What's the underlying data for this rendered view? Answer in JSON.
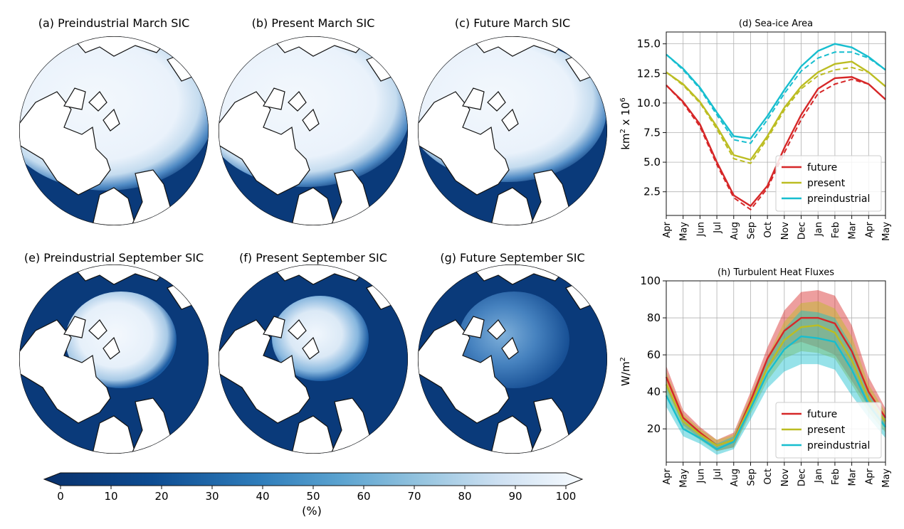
{
  "maps": [
    {
      "title": "(a) Preindustrial March SIC",
      "month": "March",
      "scenario": "preindustrial"
    },
    {
      "title": "(b) Present March SIC",
      "month": "March",
      "scenario": "present"
    },
    {
      "title": "(c) Future March SIC",
      "month": "March",
      "scenario": "future"
    },
    {
      "title": "(e) Preindustrial September SIC",
      "month": "September",
      "scenario": "preindustrial"
    },
    {
      "title": "(f) Present September SIC",
      "month": "September",
      "scenario": "present"
    },
    {
      "title": "(g) Future September SIC",
      "month": "September",
      "scenario": "future"
    }
  ],
  "colorbar": {
    "ticks": [
      "0",
      "10",
      "20",
      "30",
      "40",
      "50",
      "60",
      "70",
      "80",
      "90",
      "100"
    ],
    "label": "(%)",
    "low_color": "#08306b",
    "high_color": "#f7fbff"
  },
  "colors": {
    "future": "#d62728",
    "present": "#bcbd22",
    "preindustrial": "#17becf",
    "ocean": "#0a3a7a",
    "ice": "#eef5fc"
  },
  "chart_data": [
    {
      "type": "line",
      "title": "(d) Sea-ice Area",
      "ylabel": "km² x 10⁶",
      "ylabel_base": "km",
      "ylabel_sup1": "2",
      "ylabel_mid": " x 10",
      "ylabel_sup2": "6",
      "x": [
        "Apr",
        "May",
        "Jun",
        "Jul",
        "Aug",
        "Sep",
        "Oct",
        "Nov",
        "Dec",
        "Jan",
        "Feb",
        "Mar",
        "Apr",
        "May"
      ],
      "ylim": [
        0.5,
        16
      ],
      "yticks": [
        "2.5",
        "5.0",
        "7.5",
        "10.0",
        "12.5",
        "15.0"
      ],
      "ytick_values": [
        2.5,
        5.0,
        7.5,
        10.0,
        12.5,
        15.0
      ],
      "grid": true,
      "legend": "lower-right",
      "series": [
        {
          "name": "future",
          "color": "#d62728",
          "values": [
            11.5,
            10.1,
            8.2,
            5.0,
            2.2,
            1.3,
            3.0,
            6.2,
            9.0,
            11.2,
            12.1,
            12.2,
            11.6,
            10.3
          ],
          "dashed": [
            11.5,
            10.0,
            8.0,
            4.8,
            2.0,
            1.0,
            2.8,
            5.8,
            8.6,
            10.8,
            11.6,
            12.0,
            11.6,
            10.3
          ]
        },
        {
          "name": "present",
          "color": "#bcbd22",
          "values": [
            12.6,
            11.6,
            10.1,
            8.0,
            5.6,
            5.2,
            7.2,
            9.6,
            11.4,
            12.6,
            13.3,
            13.5,
            12.6,
            11.4
          ],
          "dashed": [
            12.6,
            11.5,
            10.0,
            7.8,
            5.3,
            4.9,
            7.0,
            9.4,
            11.2,
            12.3,
            12.8,
            13.0,
            12.6,
            11.4
          ]
        },
        {
          "name": "preindustrial",
          "color": "#17becf",
          "values": [
            14.1,
            12.9,
            11.3,
            9.2,
            7.2,
            7.0,
            8.9,
            11.1,
            13.1,
            14.4,
            15.0,
            14.7,
            13.9,
            12.8
          ],
          "dashed": [
            14.1,
            12.8,
            11.2,
            9.0,
            6.9,
            6.6,
            8.6,
            10.8,
            12.7,
            13.8,
            14.3,
            14.3,
            13.8,
            12.8
          ]
        }
      ]
    },
    {
      "type": "line",
      "title": "(h) Turbulent Heat Fluxes",
      "ylabel": "W/m²",
      "ylabel_base": "W/m",
      "ylabel_sup1": "2",
      "ylabel_mid": "",
      "ylabel_sup2": "",
      "x": [
        "Apr",
        "May",
        "Jun",
        "Jul",
        "Aug",
        "Sep",
        "Oct",
        "Nov",
        "Dec",
        "Jan",
        "Feb",
        "Mar",
        "Apr",
        "May"
      ],
      "ylim": [
        2,
        100
      ],
      "yticks": [
        "20",
        "40",
        "60",
        "80",
        "100"
      ],
      "ytick_values": [
        20,
        40,
        60,
        80,
        100
      ],
      "grid": true,
      "legend": "lower-right",
      "series": [
        {
          "name": "future",
          "color": "#d62728",
          "values": [
            48,
            26,
            18,
            11,
            14,
            35,
            58,
            73,
            80,
            80,
            77,
            62,
            40,
            26
          ],
          "band": [
            [
              42,
              54
            ],
            [
              22,
              30
            ],
            [
              15,
              21
            ],
            [
              8,
              14
            ],
            [
              10,
              18
            ],
            [
              30,
              40
            ],
            [
              52,
              64
            ],
            [
              64,
              84
            ],
            [
              67,
              94
            ],
            [
              64,
              95
            ],
            [
              60,
              92
            ],
            [
              46,
              76
            ],
            [
              32,
              48
            ],
            [
              20,
              31
            ]
          ]
        },
        {
          "name": "present",
          "color": "#bcbd22",
          "values": [
            44,
            24,
            17,
            11,
            14,
            33,
            53,
            68,
            75,
            76,
            72,
            57,
            36,
            24
          ],
          "band": [
            [
              38,
              51
            ],
            [
              20,
              28
            ],
            [
              14,
              20
            ],
            [
              8,
              14
            ],
            [
              10,
              17
            ],
            [
              28,
              38
            ],
            [
              46,
              59
            ],
            [
              58,
              78
            ],
            [
              62,
              88
            ],
            [
              61,
              89
            ],
            [
              58,
              85
            ],
            [
              44,
              70
            ],
            [
              29,
              44
            ],
            [
              18,
              29
            ]
          ]
        },
        {
          "name": "preindustrial",
          "color": "#17becf",
          "values": [
            38,
            20,
            15,
            9,
            13,
            31,
            50,
            63,
            70,
            69,
            67,
            52,
            33,
            21
          ],
          "band": [
            [
              32,
              45
            ],
            [
              16,
              25
            ],
            [
              12,
              18
            ],
            [
              6,
              12
            ],
            [
              9,
              16
            ],
            [
              25,
              36
            ],
            [
              42,
              57
            ],
            [
              51,
              74
            ],
            [
              55,
              84
            ],
            [
              55,
              83
            ],
            [
              52,
              80
            ],
            [
              38,
              65
            ],
            [
              26,
              40
            ],
            [
              15,
              26
            ]
          ]
        }
      ]
    }
  ]
}
